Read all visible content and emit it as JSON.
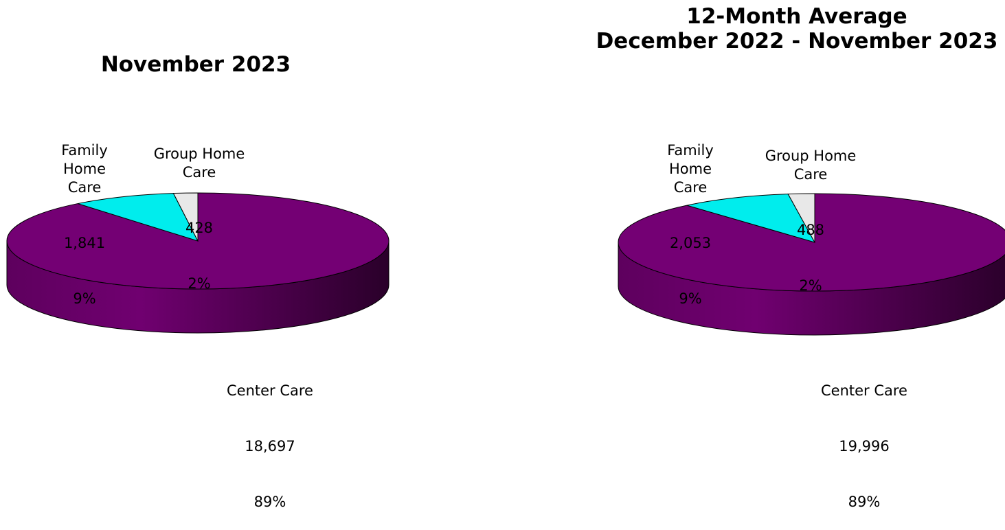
{
  "chart_data": [
    {
      "type": "pie",
      "title": "November 2023",
      "slices": [
        {
          "label": "Center Care",
          "value": 18697,
          "value_text": "18,697",
          "percent_text": "89%"
        },
        {
          "label": "Family Home Care",
          "value": 1841,
          "value_text": "1,841",
          "percent_text": "9%"
        },
        {
          "label": "Group Home Care",
          "value": 428,
          "value_text": "428",
          "percent_text": "2%"
        }
      ],
      "three_d": true
    },
    {
      "type": "pie",
      "title_lines": [
        "12-Month Average",
        "December 2022 - November 2023"
      ],
      "slices": [
        {
          "label": "Center Care",
          "value": 19996,
          "value_text": "19,996",
          "percent_text": "89%"
        },
        {
          "label": "Family Home Care",
          "value": 2053,
          "value_text": "2,053",
          "percent_text": "9%"
        },
        {
          "label": "Group Home Care",
          "value": 488,
          "value_text": "488",
          "percent_text": "2%"
        }
      ],
      "three_d": true
    }
  ],
  "colors": {
    "center_care": "#740074",
    "family_home_care": "#00eded",
    "group_home_care": "#e8e8e8"
  }
}
